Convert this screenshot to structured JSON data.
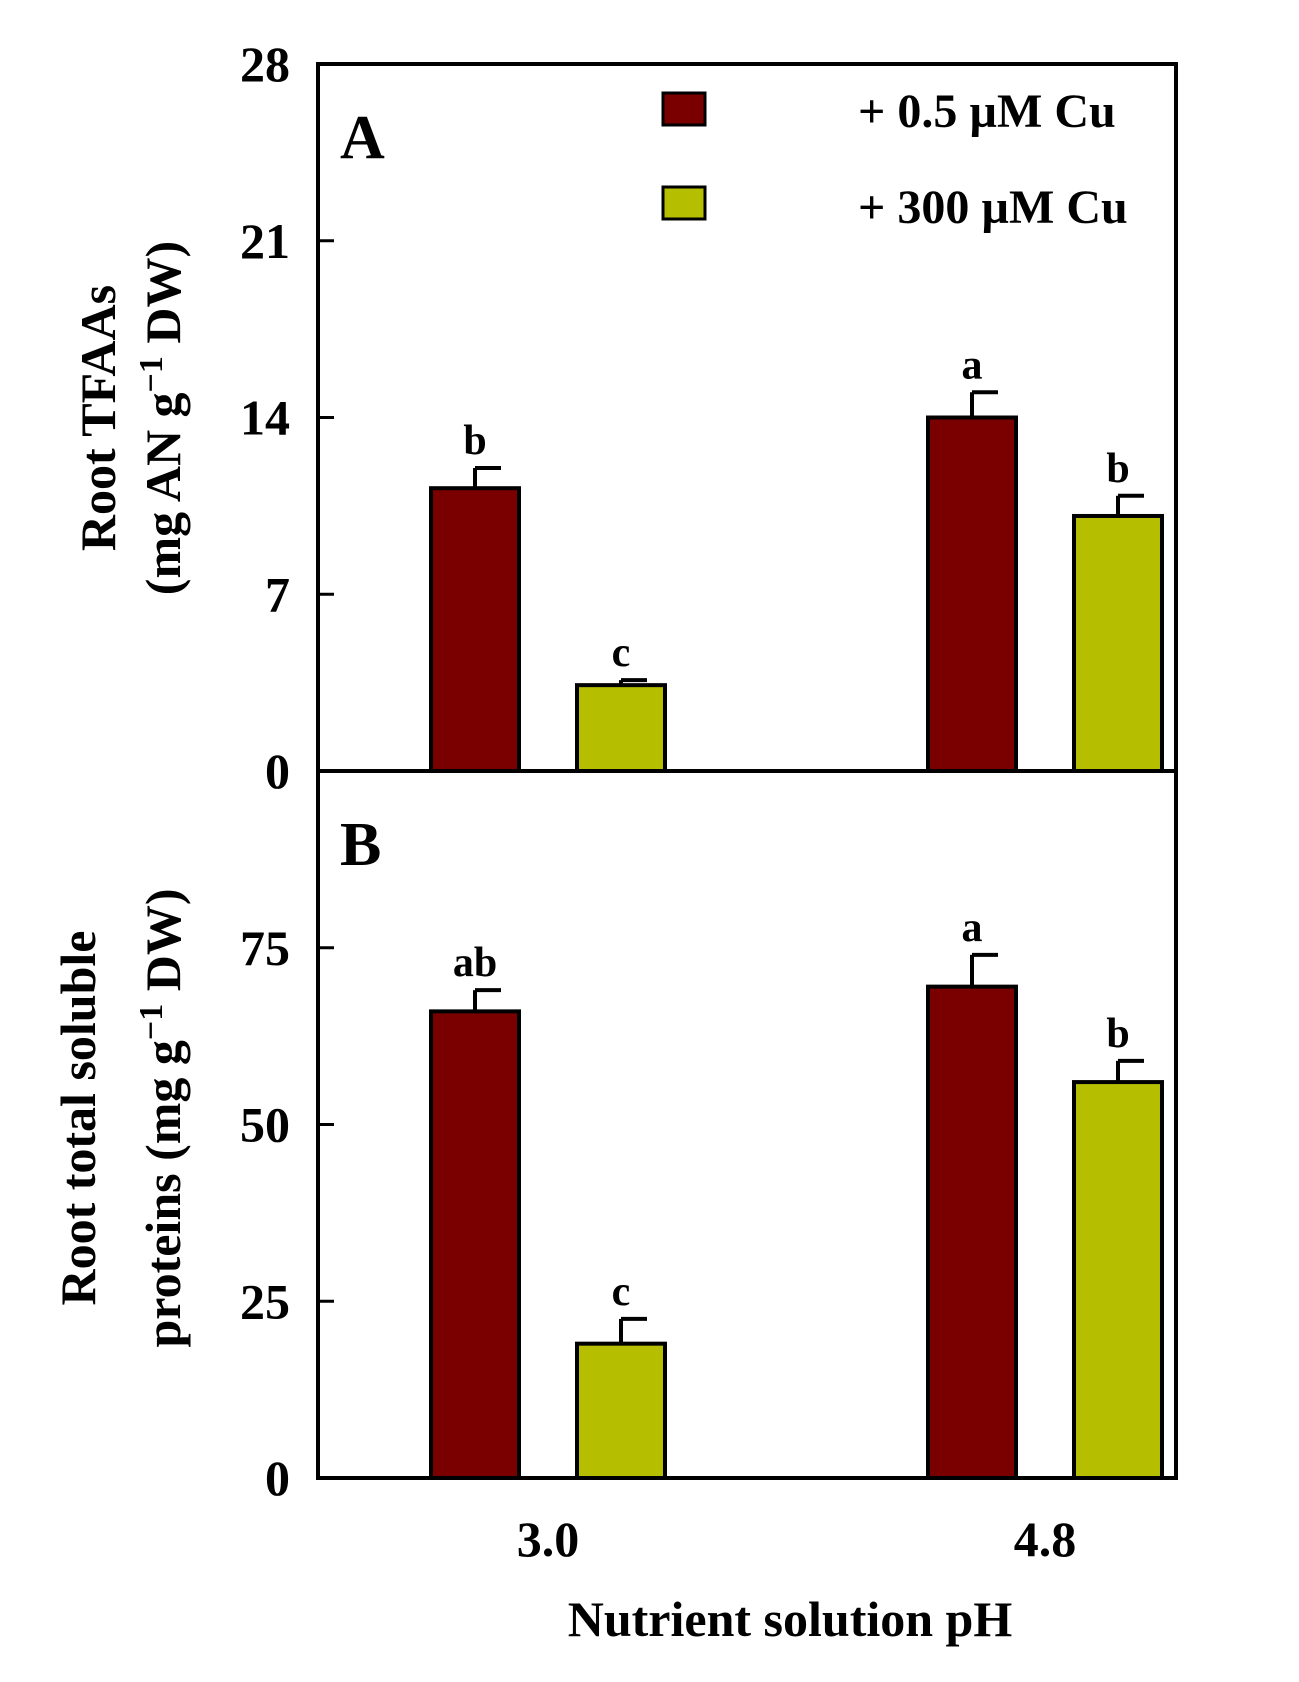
{
  "chart_data": [
    {
      "type": "bar",
      "panel": "A",
      "ylabel_line1": "Root TFAAs",
      "ylabel_line2_pre": "(mg AN g",
      "ylabel_line2_sup": "−1",
      "ylabel_line2_post": " DW)",
      "xlabel": "",
      "ylim": [
        0,
        28
      ],
      "yticks": [
        "0",
        "7",
        "14",
        "21",
        "28"
      ],
      "categories": [
        "3.0",
        "4.8"
      ],
      "series": [
        {
          "name": "+ 0.5 µM Cu",
          "color": "#7a0000",
          "values": [
            11.2,
            14.0
          ],
          "errors": [
            0.8,
            1.0
          ],
          "letters": [
            "b",
            "a"
          ]
        },
        {
          "name": "+ 300 µM Cu",
          "color": "#b5bf00",
          "values": [
            3.4,
            10.1
          ],
          "errors": [
            0.2,
            0.8
          ],
          "letters": [
            "c",
            "b"
          ]
        }
      ],
      "legend": "top-right"
    },
    {
      "type": "bar",
      "panel": "B",
      "ylabel_line1": "Root total soluble",
      "ylabel_line2_pre": "proteins (mg g",
      "ylabel_line2_sup": "−1",
      "ylabel_line2_post": " DW)",
      "xlabel": "Nutrient solution pH",
      "ylim": [
        0,
        100
      ],
      "yticks": [
        "0",
        "25",
        "50",
        "75"
      ],
      "categories": [
        "3.0",
        "4.8"
      ],
      "series": [
        {
          "name": "+ 0.5 µM Cu",
          "color": "#7a0000",
          "values": [
            66.0,
            69.5
          ],
          "errors": [
            3.0,
            4.5
          ],
          "letters": [
            "ab",
            "a"
          ]
        },
        {
          "name": "+ 300 µM Cu",
          "color": "#b5bf00",
          "values": [
            19.0,
            56.0
          ],
          "errors": [
            3.5,
            3.0
          ],
          "letters": [
            "c",
            "b"
          ]
        }
      ]
    }
  ]
}
